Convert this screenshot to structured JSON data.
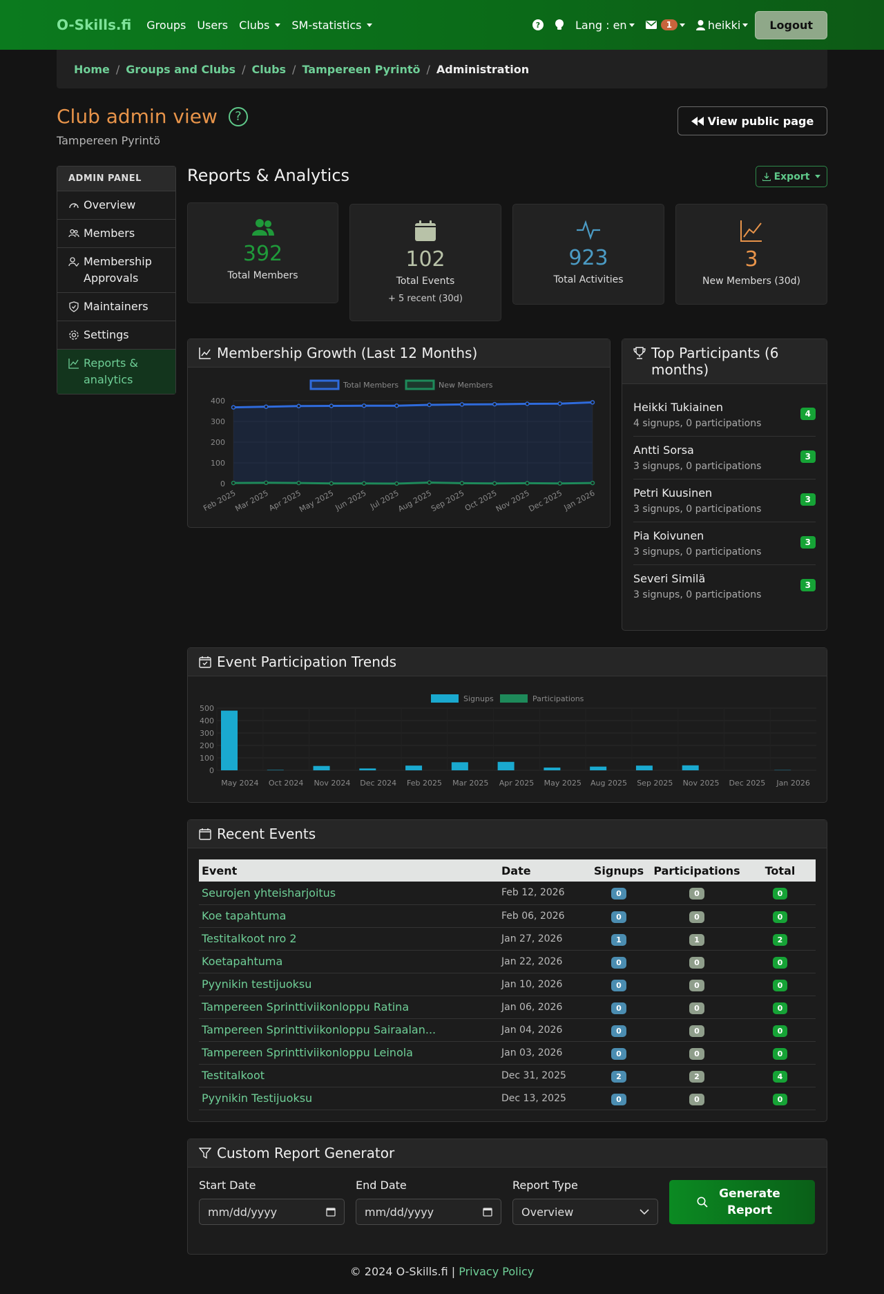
{
  "navbar": {
    "brand": "O-Skills.fi",
    "links": [
      "Groups",
      "Users",
      "Clubs",
      "SM-statistics"
    ],
    "lang": "Lang : en",
    "mail_count": "1",
    "user": "heikki",
    "logout": "Logout"
  },
  "breadcrumb": [
    "Home",
    "Groups and Clubs",
    "Clubs",
    "Tampereen Pyrintö",
    "Administration"
  ],
  "header": {
    "title": "Club admin view",
    "help": "?",
    "club": "Tampereen Pyrintö",
    "view_public": "View public page"
  },
  "sidebar": {
    "heading": "ADMIN PANEL",
    "items": [
      {
        "label": "Overview",
        "icon": "speedometer-icon"
      },
      {
        "label": "Members",
        "icon": "people-icon"
      },
      {
        "label": "Membership Approvals",
        "icon": "person-check-icon"
      },
      {
        "label": "Maintainers",
        "icon": "shield-icon"
      },
      {
        "label": "Settings",
        "icon": "gear-icon"
      },
      {
        "label": "Reports & analytics",
        "icon": "graph-icon"
      }
    ]
  },
  "section": {
    "title": "Reports & Analytics",
    "export": "Export"
  },
  "stats": [
    {
      "value": "392",
      "label": "Total Members",
      "color": "#1f9a3a",
      "icon": "people-icon"
    },
    {
      "value": "102",
      "label": "Total Events",
      "sub": "+ 5 recent (30d)",
      "color": "#b8c2a8",
      "icon": "calendar-icon"
    },
    {
      "value": "923",
      "label": "Total Activities",
      "color": "#4b9bc4",
      "icon": "activity-icon"
    },
    {
      "value": "3",
      "label": "New Members (30d)",
      "color": "#e8944a",
      "icon": "graph-up-icon"
    }
  ],
  "growth_panel": {
    "title": "Membership Growth (Last 12 Months)"
  },
  "participation_panel": {
    "title": "Event Participation Trends"
  },
  "chart_data": [
    {
      "type": "line",
      "x": [
        "Feb 2025",
        "Mar 2025",
        "Apr 2025",
        "May 2025",
        "Jun 2025",
        "Jul 2025",
        "Aug 2025",
        "Sep 2025",
        "Oct 2025",
        "Nov 2025",
        "Dec 2025",
        "Jan 2026"
      ],
      "series": [
        {
          "name": "Total Members",
          "values": [
            368,
            371,
            374,
            375,
            376,
            376,
            380,
            382,
            383,
            385,
            386,
            392
          ],
          "color": "#2f6bdc"
        },
        {
          "name": "New Members",
          "values": [
            3,
            4,
            3,
            1,
            1,
            0,
            5,
            2,
            1,
            2,
            1,
            3
          ],
          "color": "#1e8a5a"
        }
      ],
      "yticks": [
        "400",
        "300",
        "200",
        "100",
        "0"
      ],
      "ylim": [
        0,
        400
      ]
    },
    {
      "type": "bar",
      "categories": [
        "May 2024",
        "Oct 2024",
        "Nov 2024",
        "Dec 2024",
        "Feb 2025",
        "Mar 2025",
        "Apr 2025",
        "May 2025",
        "Aug 2025",
        "Sep 2025",
        "Nov 2025",
        "Dec 2025",
        "Jan 2026"
      ],
      "series": [
        {
          "name": "Signups",
          "values": [
            480,
            3,
            35,
            15,
            38,
            65,
            68,
            22,
            30,
            38,
            40,
            0,
            2
          ],
          "color": "#1aa9cf"
        },
        {
          "name": "Participations",
          "values": [
            0,
            0,
            0,
            0,
            0,
            0,
            0,
            0,
            0,
            0,
            0,
            0,
            0
          ],
          "color": "#1e8a5a"
        }
      ],
      "yticks": [
        "500",
        "400",
        "300",
        "200",
        "100",
        "0"
      ],
      "ylim": [
        0,
        500
      ]
    }
  ],
  "top_participants": {
    "title": "Top Participants (6 months)",
    "items": [
      {
        "name": "Heikki Tukiainen",
        "detail": "4 signups, 0 participations",
        "count": "4"
      },
      {
        "name": "Antti Sorsa",
        "detail": "3 signups, 0 participations",
        "count": "3"
      },
      {
        "name": "Petri Kuusinen",
        "detail": "3 signups, 0 participations",
        "count": "3"
      },
      {
        "name": "Pia Koivunen",
        "detail": "3 signups, 0 participations",
        "count": "3"
      },
      {
        "name": "Severi Similä",
        "detail": "3 signups, 0 participations",
        "count": "3"
      }
    ]
  },
  "recent_events": {
    "title": "Recent Events",
    "columns": [
      "Event",
      "Date",
      "Signups",
      "Participations",
      "Total"
    ],
    "rows": [
      [
        "Seurojen yhteisharjoitus",
        "Feb 12, 2026",
        "0",
        "0",
        "0"
      ],
      [
        "Koe tapahtuma",
        "Feb 06, 2026",
        "0",
        "0",
        "0"
      ],
      [
        "Testitalkoot nro 2",
        "Jan 27, 2026",
        "1",
        "1",
        "2"
      ],
      [
        "Koetapahtuma",
        "Jan 22, 2026",
        "0",
        "0",
        "0"
      ],
      [
        "Pyynikin testijuoksu",
        "Jan 10, 2026",
        "0",
        "0",
        "0"
      ],
      [
        "Tampereen Sprinttiviikonloppu Ratina",
        "Jan 06, 2026",
        "0",
        "0",
        "0"
      ],
      [
        "Tampereen Sprinttiviikonloppu Sairaalan...",
        "Jan 04, 2026",
        "0",
        "0",
        "0"
      ],
      [
        "Tampereen Sprinttiviikonloppu Leinola",
        "Jan 03, 2026",
        "0",
        "0",
        "0"
      ],
      [
        "Testitalkoot",
        "Dec 31, 2025",
        "2",
        "2",
        "4"
      ],
      [
        "Pyynikin Testijuoksu",
        "Dec 13, 2025",
        "0",
        "0",
        "0"
      ]
    ]
  },
  "report_generator": {
    "title": "Custom Report Generator",
    "start_label": "Start Date",
    "end_label": "End Date",
    "type_label": "Report Type",
    "date_placeholder": "mm/dd/yyyy",
    "type_value": "Overview",
    "button": "Generate Report"
  },
  "footer": {
    "text": "© 2024 O-Skills.fi |",
    "link": "Privacy Policy"
  }
}
